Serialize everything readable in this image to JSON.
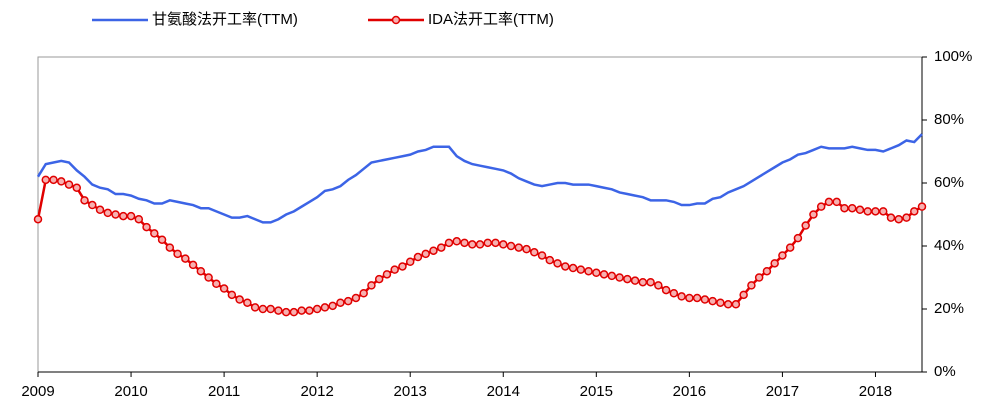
{
  "chart_data": {
    "type": "line",
    "categories": [
      "2009",
      null,
      null,
      null,
      null,
      null,
      null,
      null,
      null,
      null,
      null,
      null,
      "2010",
      null,
      null,
      null,
      null,
      null,
      null,
      null,
      null,
      null,
      null,
      null,
      "2011",
      null,
      null,
      null,
      null,
      null,
      null,
      null,
      null,
      null,
      null,
      null,
      "2012",
      null,
      null,
      null,
      null,
      null,
      null,
      null,
      null,
      null,
      null,
      null,
      "2013",
      null,
      null,
      null,
      null,
      null,
      null,
      null,
      null,
      null,
      null,
      null,
      "2014",
      null,
      null,
      null,
      null,
      null,
      null,
      null,
      null,
      null,
      null,
      null,
      "2015",
      null,
      null,
      null,
      null,
      null,
      null,
      null,
      null,
      null,
      null,
      null,
      "2016",
      null,
      null,
      null,
      null,
      null,
      null,
      null,
      null,
      null,
      null,
      null,
      "2017",
      null,
      null,
      null,
      null,
      null,
      null,
      null,
      null,
      null,
      null,
      null,
      "2018",
      null,
      null,
      null,
      null,
      null,
      null
    ],
    "series": [
      {
        "name": "甘氨酸法开工率(TTM)",
        "color": "#3c64e6",
        "marker": false,
        "values": [
          62,
          66,
          66.5,
          67,
          66.5,
          64,
          62,
          59.5,
          58.5,
          58,
          56.5,
          56.5,
          56,
          55,
          54.5,
          53.5,
          53.5,
          54.5,
          54,
          53.5,
          53,
          52,
          52,
          51,
          50,
          49,
          49,
          49.5,
          48.5,
          47.5,
          47.5,
          48.5,
          50,
          51,
          52.5,
          54,
          55.5,
          57.5,
          58,
          59,
          61,
          62.5,
          64.5,
          66.5,
          67,
          67.5,
          68,
          68.5,
          69,
          70,
          70.5,
          71.5,
          71.5,
          71.5,
          68.5,
          67,
          66,
          65.5,
          65,
          64.5,
          64,
          63,
          61.5,
          60.5,
          59.5,
          59,
          59.5,
          60,
          60,
          59.5,
          59.5,
          59.5,
          59,
          58.5,
          58,
          57,
          56.5,
          56,
          55.5,
          54.5,
          54.5,
          54.5,
          54,
          53,
          53,
          53.5,
          53.5,
          55,
          55.5,
          57,
          58,
          59,
          60.5,
          62,
          63.5,
          65,
          66.5,
          67.5,
          69,
          69.5,
          70.5,
          71.5,
          71,
          71,
          71,
          71.5,
          71,
          70.5,
          70.5,
          70,
          71,
          72,
          73.5,
          73,
          75.5
        ]
      },
      {
        "name": "IDA法开工率(TTM)",
        "color": "#e00000",
        "marker": true,
        "values": [
          48.5,
          61,
          61,
          60.5,
          59.5,
          58.5,
          54.5,
          53,
          51.5,
          50.5,
          50,
          49.5,
          49.5,
          48.5,
          46,
          44,
          42,
          39.5,
          37.5,
          36,
          34,
          32,
          30,
          28,
          26.5,
          24.5,
          23,
          22,
          20.5,
          20,
          20,
          19.5,
          19,
          19,
          19.5,
          19.5,
          20,
          20.5,
          21,
          22,
          22.5,
          23.5,
          25,
          27.5,
          29.5,
          31,
          32.5,
          33.5,
          35,
          36.5,
          37.5,
          38.5,
          39.5,
          41,
          41.5,
          41,
          40.5,
          40.5,
          41,
          41,
          40.5,
          40,
          39.5,
          39,
          38,
          37,
          35.5,
          34.5,
          33.5,
          33,
          32.5,
          32,
          31.5,
          31,
          30.5,
          30,
          29.5,
          29,
          28.5,
          28.5,
          27.5,
          26,
          25,
          24,
          23.5,
          23.5,
          23,
          22.5,
          22,
          21.5,
          21.5,
          24.5,
          27.5,
          30,
          32,
          34.5,
          37,
          39.5,
          42.5,
          46.5,
          50,
          52.5,
          54,
          54,
          52,
          52,
          51.5,
          51,
          51,
          51,
          49,
          48.5,
          49,
          51,
          52.5
        ]
      }
    ],
    "ylim": [
      0,
      100
    ],
    "yticks": [
      {
        "value": 0,
        "label": "0%"
      },
      {
        "value": 20,
        "label": "20%"
      },
      {
        "value": 40,
        "label": "40%"
      },
      {
        "value": 60,
        "label": "60%"
      },
      {
        "value": 80,
        "label": "80%"
      },
      {
        "value": 100,
        "label": "100%"
      }
    ],
    "y_axis_side": "right",
    "grid": false,
    "legend": "top"
  }
}
